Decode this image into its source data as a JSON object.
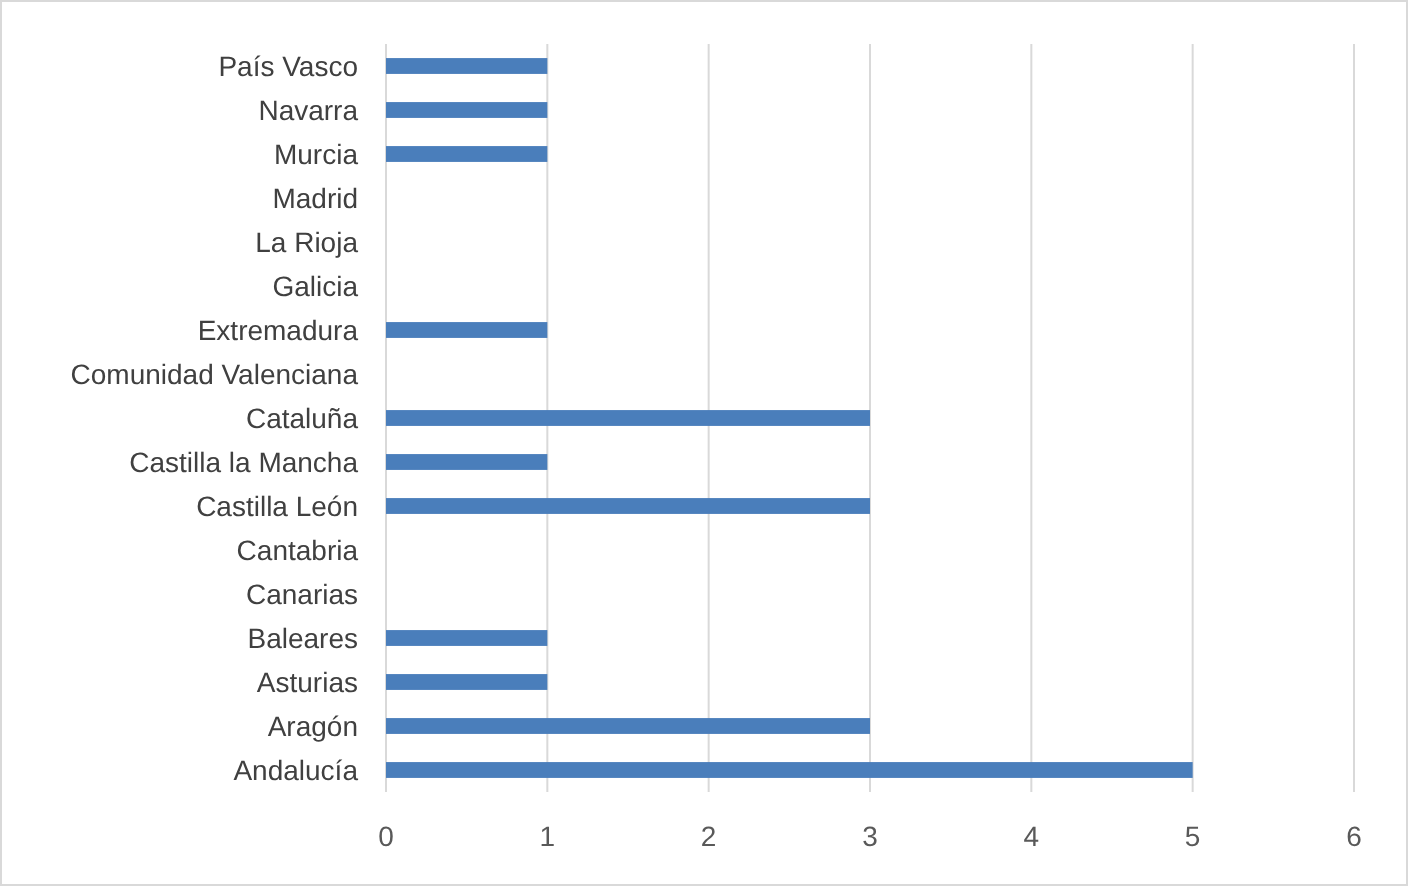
{
  "chart_data": {
    "type": "bar",
    "orientation": "horizontal",
    "categories": [
      "País Vasco",
      "Navarra",
      "Murcia",
      "Madrid",
      "La Rioja",
      "Galicia",
      "Extremadura",
      "Comunidad Valenciana",
      "Cataluña",
      "Castilla la Mancha",
      "Castilla León",
      "Cantabria",
      "Canarias",
      "Baleares",
      "Asturias",
      "Aragón",
      "Andalucía"
    ],
    "values": [
      1,
      1,
      1,
      0,
      0,
      0,
      1,
      0,
      3,
      1,
      3,
      0,
      0,
      1,
      1,
      3,
      5
    ],
    "color": "#4a7ebb",
    "xlim": [
      0,
      6
    ],
    "xticks": [
      0,
      1,
      2,
      3,
      4,
      5,
      6
    ],
    "grid": "x"
  }
}
